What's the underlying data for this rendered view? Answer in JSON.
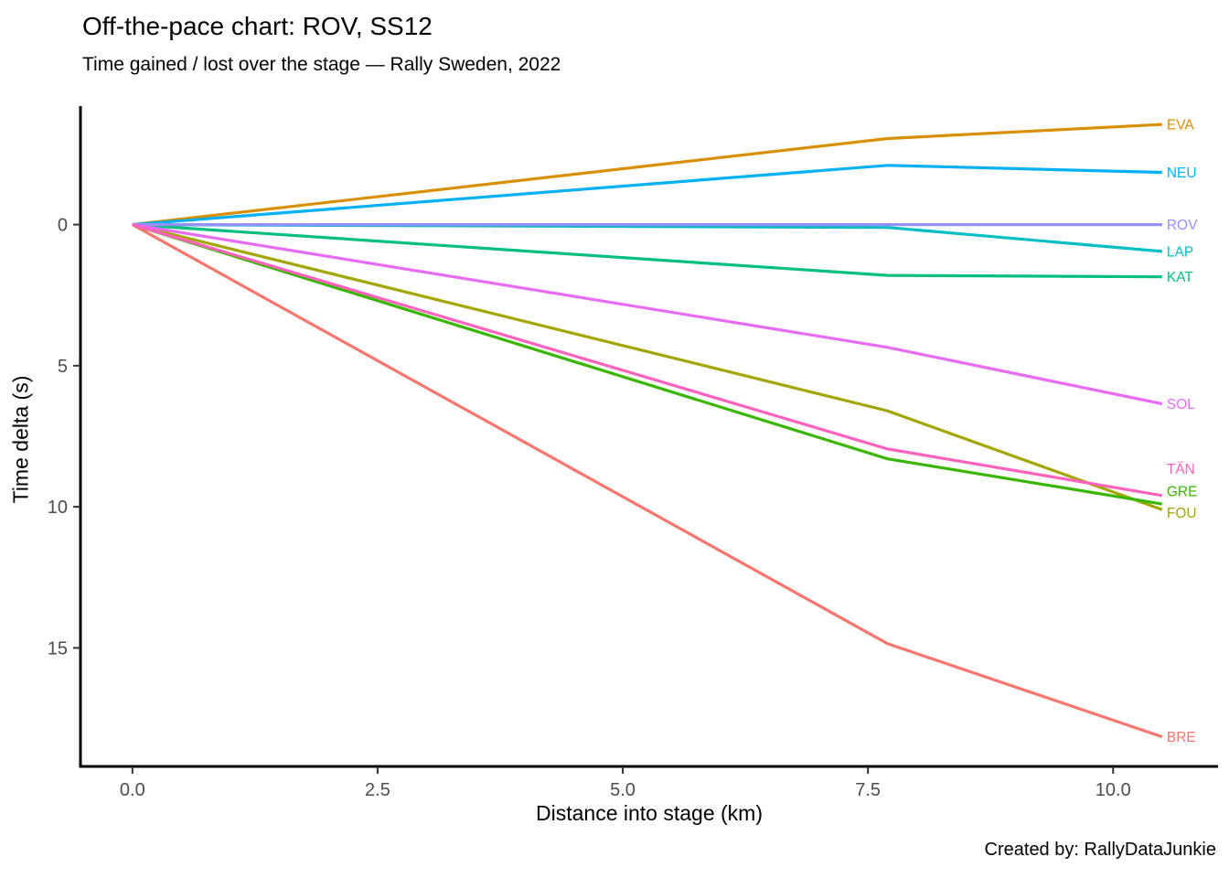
{
  "page": {
    "background": "#ffffff",
    "axis_line_color": "#000000",
    "tick_label_color": "#4d4d4d"
  },
  "chart_data": {
    "type": "line",
    "title": "Off-the-pace chart: ROV, SS12",
    "subtitle": "Time gained / lost over the stage — Rally Sweden, 2022",
    "xlabel": "Distance into stage (km)",
    "ylabel": "Time delta (s)",
    "caption": "Created by: RallyDataJunkie",
    "reference_driver": "ROV",
    "x_axis": {
      "ticks": [
        0.0,
        2.5,
        5.0,
        7.5,
        10.0
      ],
      "tick_labels": [
        "0.0",
        "2.5",
        "5.0",
        "7.5",
        "10.0"
      ],
      "range_km": [
        -0.53,
        11.07
      ]
    },
    "y_axis": {
      "ticks": [
        0,
        5,
        10,
        15
      ],
      "tick_labels": [
        "0",
        "5",
        "10",
        "15"
      ],
      "range_s": [
        -4.2,
        19.2
      ],
      "positive_is_down": true,
      "grid": false
    },
    "x_km": [
      0,
      7.7,
      10.5
    ],
    "series": [
      {
        "name": "BRE",
        "color": "#F8766D",
        "deltas_s": [
          0,
          14.85,
          18.15
        ],
        "label_s": 18.15
      },
      {
        "name": "EVA",
        "color": "#D89000",
        "deltas_s": [
          0,
          -3.05,
          -3.55
        ],
        "label_s": -3.55
      },
      {
        "name": "FOU",
        "color": "#A3A500",
        "deltas_s": [
          0,
          6.6,
          10.1
        ],
        "label_s": 10.2
      },
      {
        "name": "GRE",
        "color": "#39B600",
        "deltas_s": [
          0,
          8.3,
          9.9
        ],
        "label_s": 9.45
      },
      {
        "name": "KAT",
        "color": "#00BF7D",
        "deltas_s": [
          0,
          1.8,
          1.85
        ],
        "label_s": 1.85
      },
      {
        "name": "LAP",
        "color": "#00BFC4",
        "deltas_s": [
          0,
          0.1,
          0.95
        ],
        "label_s": 0.95
      },
      {
        "name": "NEU",
        "color": "#00B0F6",
        "deltas_s": [
          0,
          -2.1,
          -1.85
        ],
        "label_s": -1.85
      },
      {
        "name": "ROV",
        "color": "#9590FF",
        "deltas_s": [
          0,
          0,
          0
        ],
        "label_s": 0
      },
      {
        "name": "SOL",
        "color": "#E76BF3",
        "deltas_s": [
          0,
          4.35,
          6.35
        ],
        "label_s": 6.35
      },
      {
        "name": "TÄN",
        "color": "#FF62BC",
        "deltas_s": [
          0,
          7.95,
          9.6
        ],
        "label_s": 8.65
      }
    ]
  }
}
